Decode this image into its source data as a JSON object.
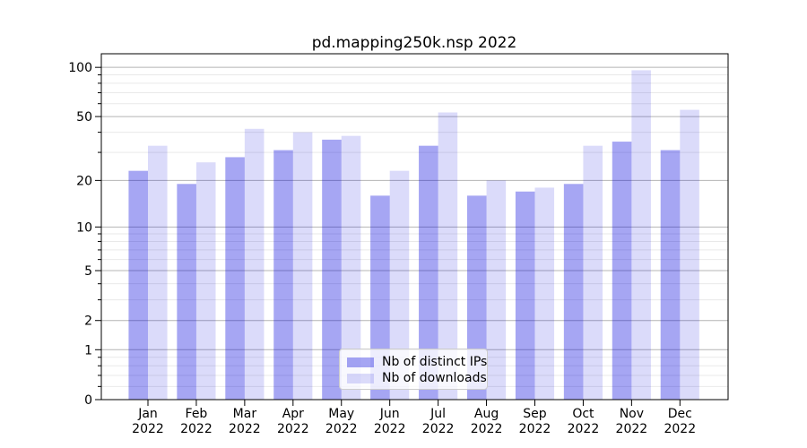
{
  "chart_data": {
    "type": "bar",
    "title": "pd.mapping250k.nsp 2022",
    "categories": [
      "Jan",
      "Feb",
      "Mar",
      "Apr",
      "May",
      "Jun",
      "Jul",
      "Aug",
      "Sep",
      "Oct",
      "Nov",
      "Dec"
    ],
    "year_label": "2022",
    "series": [
      {
        "name": "Nb of distinct IPs",
        "color": "rgba(0,0,220,0.35)",
        "values": [
          23,
          19,
          28,
          31,
          36,
          16,
          33,
          16,
          17,
          19,
          35,
          31
        ]
      },
      {
        "name": "Nb of downloads",
        "color": "rgba(0,0,220,0.14)",
        "values": [
          33,
          26,
          42,
          40,
          38,
          23,
          53,
          20,
          18,
          33,
          96,
          55
        ]
      }
    ],
    "yscale": "log1p",
    "ylim": [
      0,
      121
    ],
    "yticks": [
      0,
      1,
      2,
      5,
      10,
      20,
      50,
      100
    ],
    "yticks_minor": [
      0.2,
      0.4,
      0.6,
      0.8,
      3,
      4,
      6,
      7,
      8,
      9,
      30,
      40,
      60,
      70,
      80,
      90
    ],
    "grid": true,
    "legend_position": "lower center",
    "xlabel": "",
    "ylabel": ""
  },
  "colors": {
    "major_grid": "#b4b4b4",
    "minor_grid": "#e9e9e9",
    "axis": "#000000",
    "background": "#ffffff"
  }
}
